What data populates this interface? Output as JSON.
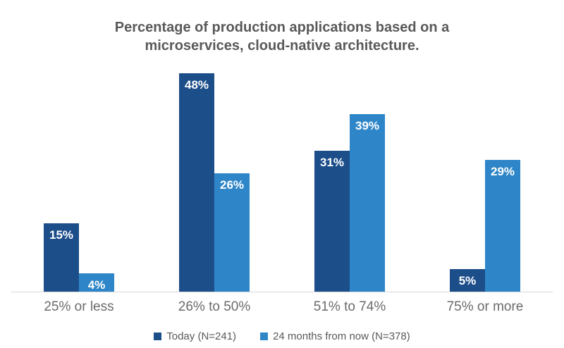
{
  "chart_data": {
    "type": "bar",
    "title": "Percentage of production applications based on a microservices, cloud-native architecture.",
    "categories": [
      "25% or less",
      "26% to 50%",
      "51% to 74%",
      "75% or more"
    ],
    "series": [
      {
        "name": "Today (N=241)",
        "color": "#1c4e8a",
        "values": [
          15,
          48,
          31,
          5
        ]
      },
      {
        "name": "24 months from now (N=378)",
        "color": "#2e86c8",
        "values": [
          4,
          26,
          39,
          29
        ]
      }
    ],
    "value_suffix": "%",
    "ylim": [
      0,
      48
    ],
    "grid": false,
    "legend_position": "bottom",
    "axis_line_color": "#d8d8d8",
    "title_color": "#595959",
    "category_label_color": "#6b6b6b",
    "value_label_color": "#ffffff"
  }
}
